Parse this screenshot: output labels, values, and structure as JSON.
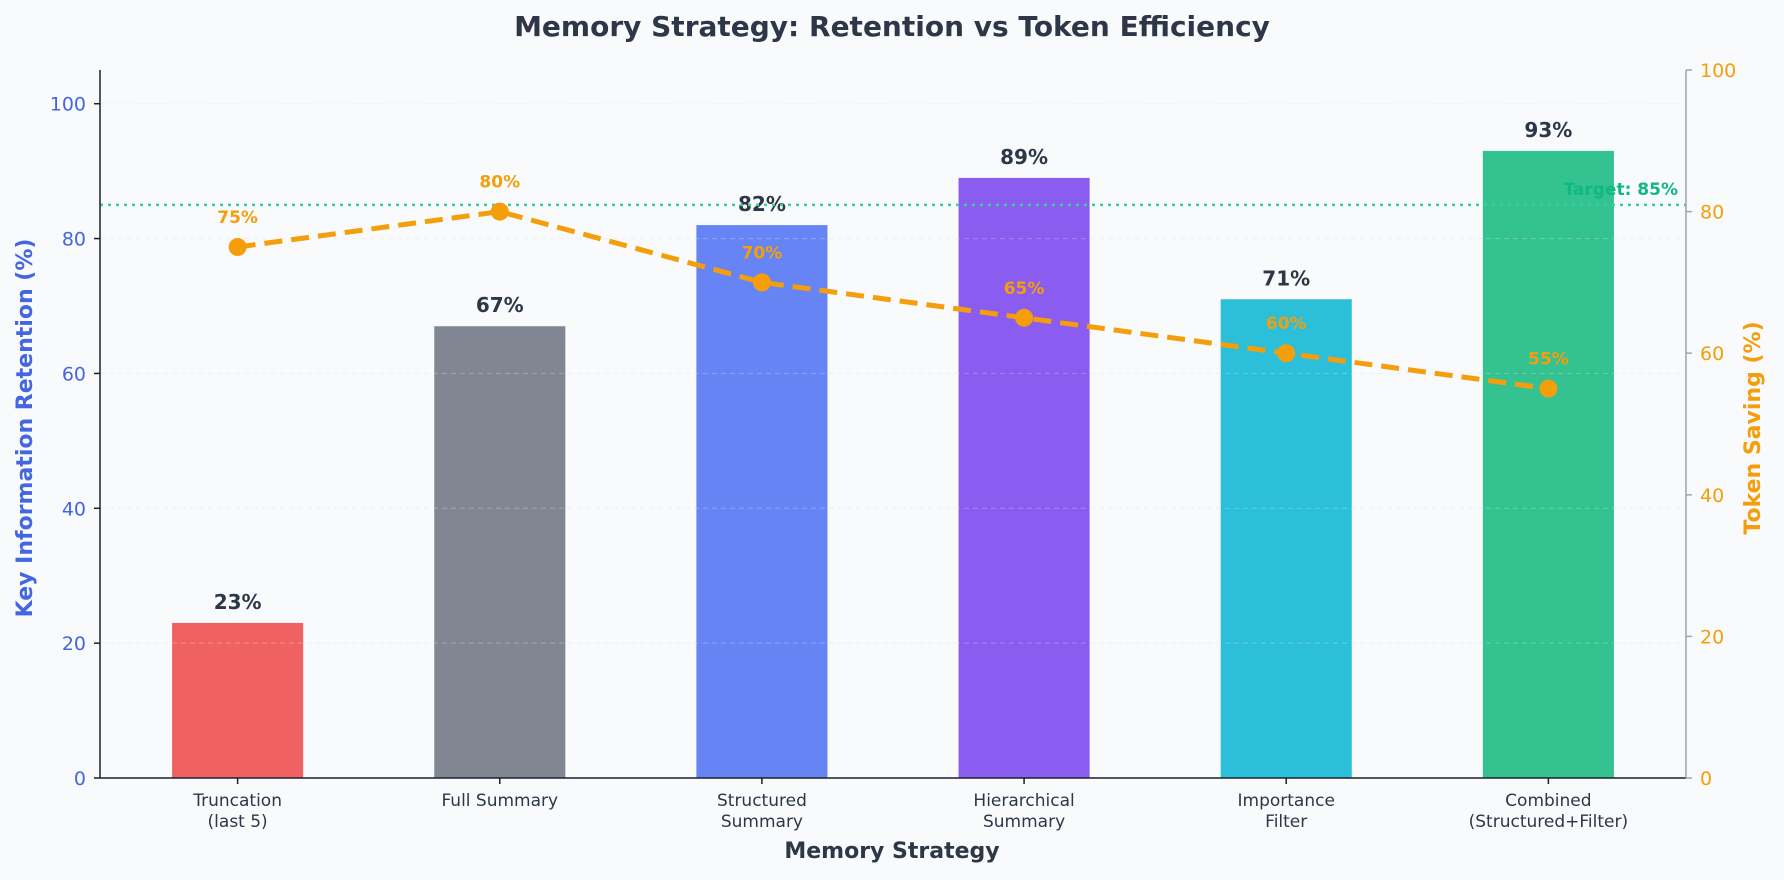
{
  "chart_data": {
    "type": "bar",
    "title": "Memory Strategy: Retention vs Token Efficiency",
    "xlabel": "Memory Strategy",
    "ylabel": "Key Information Retention (%)",
    "y2label": "Token Saving (%)",
    "categories": [
      [
        "Truncation",
        "(last 5)"
      ],
      [
        "Full Summary"
      ],
      [
        "Structured",
        "Summary"
      ],
      [
        "Hierarchical",
        "Summary"
      ],
      [
        "Importance",
        "Filter"
      ],
      [
        "Combined",
        "(Structured+Filter)"
      ]
    ],
    "series": [
      {
        "name": "Key Information Retention (%)",
        "type": "bar",
        "axis": "left",
        "values": [
          23,
          67,
          82,
          89,
          71,
          93
        ],
        "labels": [
          "23%",
          "67%",
          "82%",
          "89%",
          "71%",
          "93%"
        ],
        "colors": [
          "#f06262",
          "#818792",
          "#6784f5",
          "#8b5cf0",
          "#2bbfda",
          "#34c291"
        ]
      },
      {
        "name": "Token Saving (%)",
        "type": "line",
        "axis": "right",
        "values": [
          75,
          80,
          70,
          65,
          60,
          55
        ],
        "labels": [
          "75%",
          "80%",
          "70%",
          "65%",
          "60%",
          "55%"
        ],
        "color": "#f59e0b"
      }
    ],
    "target": {
      "value": 85,
      "label": "Target: 85%",
      "color": "#34d399"
    },
    "ylim": [
      0,
      105
    ],
    "y2lim": [
      0,
      100
    ],
    "yticks": [
      0,
      20,
      40,
      60,
      80,
      100
    ],
    "y2ticks": [
      0,
      20,
      40,
      60,
      80,
      100
    ],
    "grid": true,
    "legend": "none",
    "colors": {
      "left_axis": "#4466e0",
      "right_axis": "#f59e0b",
      "text": "#2d3748",
      "background": "#f8fafc"
    }
  }
}
